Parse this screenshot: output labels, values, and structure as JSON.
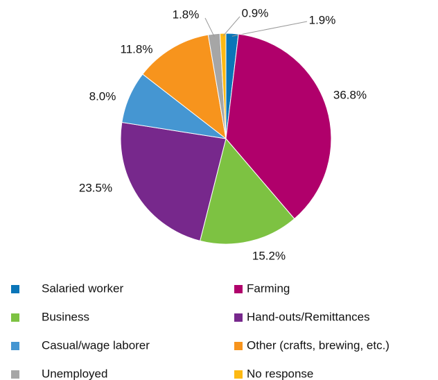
{
  "chart_data": {
    "type": "pie",
    "categories": [
      "Salaried worker",
      "Farming",
      "Business",
      "Hand-outs/Remittances",
      "Casual/wage laborer",
      "Other (crafts, brewing, etc.)",
      "Unemployed",
      "No response"
    ],
    "values": [
      1.9,
      36.8,
      15.2,
      23.5,
      8.0,
      11.8,
      1.8,
      0.9
    ],
    "value_labels": [
      "1.9%",
      "36.8%",
      "15.2%",
      "23.5%",
      "8.0%",
      "11.8%",
      "1.8%",
      "0.9%"
    ],
    "colors": [
      "#0a75b8",
      "#b0006b",
      "#7dc242",
      "#77288c",
      "#4596d2",
      "#f7941d",
      "#a6a6a6",
      "#fdb913"
    ],
    "legend": "bottom"
  }
}
